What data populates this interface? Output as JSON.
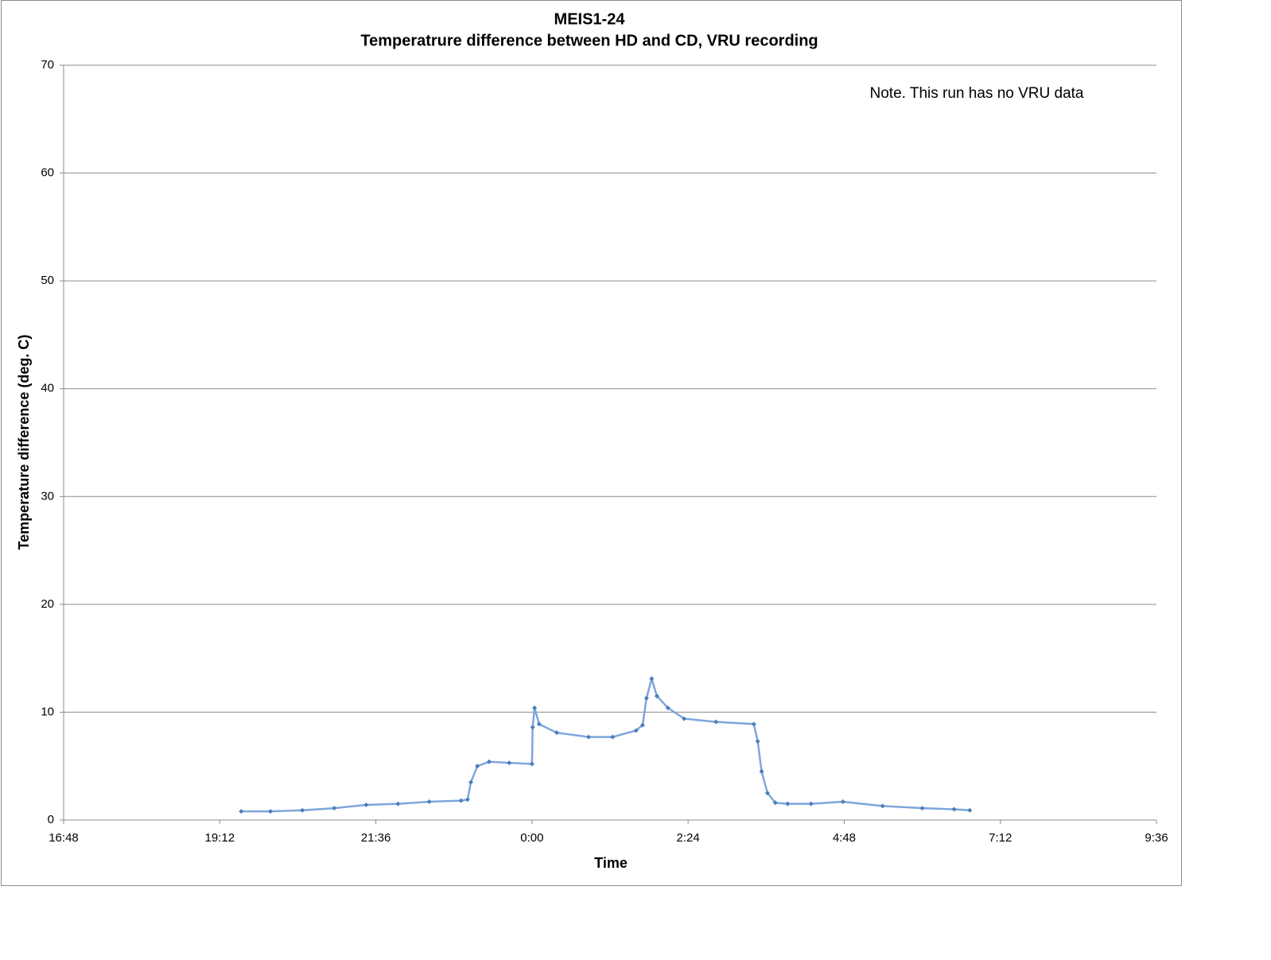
{
  "chart_data": {
    "type": "line",
    "title": "MEIS1-24",
    "subtitle": "Temperatrure difference between HD and CD, VRU recording",
    "annotation": "Note. This run has no VRU data",
    "x_label": "Time",
    "y_label": "Temperature difference (deg. C)",
    "color": "#4a7ebb",
    "x": [
      19.53,
      19.98,
      20.47,
      20.96,
      21.45,
      21.94,
      22.42,
      22.91,
      23.01,
      23.06,
      23.16,
      23.34,
      23.65,
      24.0,
      24.01,
      24.04,
      24.11,
      24.38,
      24.87,
      25.24,
      25.6,
      25.7,
      25.76,
      25.84,
      25.92,
      26.09,
      26.34,
      26.83,
      27.41,
      27.47,
      27.53,
      27.62,
      27.74,
      27.93,
      28.29,
      28.78,
      29.39,
      30.0,
      30.49,
      30.73
    ],
    "values": [
      0.8,
      0.8,
      0.9,
      1.1,
      1.4,
      1.5,
      1.7,
      1.8,
      1.9,
      3.5,
      5.0,
      5.4,
      5.3,
      5.2,
      8.6,
      10.4,
      8.9,
      8.1,
      7.7,
      7.7,
      8.3,
      8.8,
      11.3,
      13.1,
      11.5,
      10.4,
      9.4,
      9.1,
      8.9,
      7.3,
      4.5,
      2.5,
      1.6,
      1.5,
      1.5,
      1.7,
      1.3,
      1.1,
      1.0,
      0.9
    ],
    "xlim": [
      16.8,
      33.6
    ],
    "xticks": [
      {
        "value": 16.8,
        "label": "16:48"
      },
      {
        "value": 19.2,
        "label": "19:12"
      },
      {
        "value": 21.6,
        "label": "21:36"
      },
      {
        "value": 24,
        "label": "0:00"
      },
      {
        "value": 26.4,
        "label": "2:24"
      },
      {
        "value": 28.8,
        "label": "4:48"
      },
      {
        "value": 31.2,
        "label": "7:12"
      },
      {
        "value": 33.6,
        "label": "9:36"
      }
    ],
    "ylim": [
      0,
      70
    ],
    "yticks": [
      0,
      10,
      20,
      30,
      40,
      50,
      60,
      70
    ],
    "grid": true
  }
}
